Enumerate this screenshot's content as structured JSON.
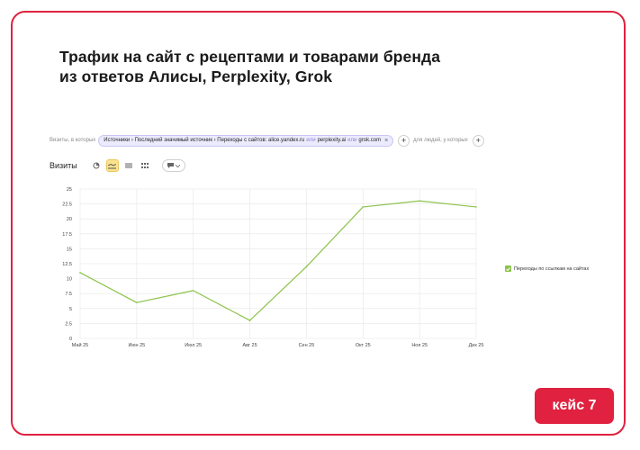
{
  "title": {
    "line1": "Трафик на сайт с рецептами и товарами бренда",
    "line2": "из ответов Алисы, Perplexity, Grok"
  },
  "filter": {
    "prefix": "Визиты, в которых",
    "chip_main": "Источники › Последний значимый источник › Переходы с сайтов: alice.yandex.ru",
    "or1": "или",
    "chip_part2": "perplexity.ai",
    "or2": "или",
    "chip_part3": "grok.com",
    "close_icon": "close-icon",
    "people_label": "для людей, у которых",
    "plus_icon": "plus-icon"
  },
  "toolbar": {
    "metric": "Визиты",
    "icons": [
      "pie-icon",
      "line-chart-icon",
      "stacked-area-icon",
      "bar-icon",
      "comment-icon"
    ]
  },
  "legend": {
    "label": "Переходы по ссылкам на сайтах",
    "color": "#8bc34a"
  },
  "badge": {
    "label": "кейс 7",
    "color": "#e0213f"
  },
  "chart_data": {
    "type": "line",
    "title": "",
    "xlabel": "",
    "ylabel": "",
    "ylim": [
      0,
      25
    ],
    "yticks": [
      "0",
      "2.5",
      "5",
      "7.5",
      "10",
      "12.5",
      "15",
      "17.5",
      "20",
      "22.5",
      "25"
    ],
    "yticks_values": [
      0,
      2.5,
      5,
      7.5,
      10,
      12.5,
      15,
      17.5,
      20,
      22.5,
      25
    ],
    "categories": [
      "Май 25",
      "Июн 25",
      "Июл 25",
      "Авг 25",
      "Сен 25",
      "Окт 25",
      "Ноя 25",
      "Дек 25"
    ],
    "series": [
      {
        "name": "Переходы по ссылкам на сайтах",
        "color": "#8bc34a",
        "values": [
          11,
          6,
          8,
          3,
          12,
          22,
          23,
          22
        ]
      }
    ],
    "grid": true,
    "legend_position": "right"
  }
}
